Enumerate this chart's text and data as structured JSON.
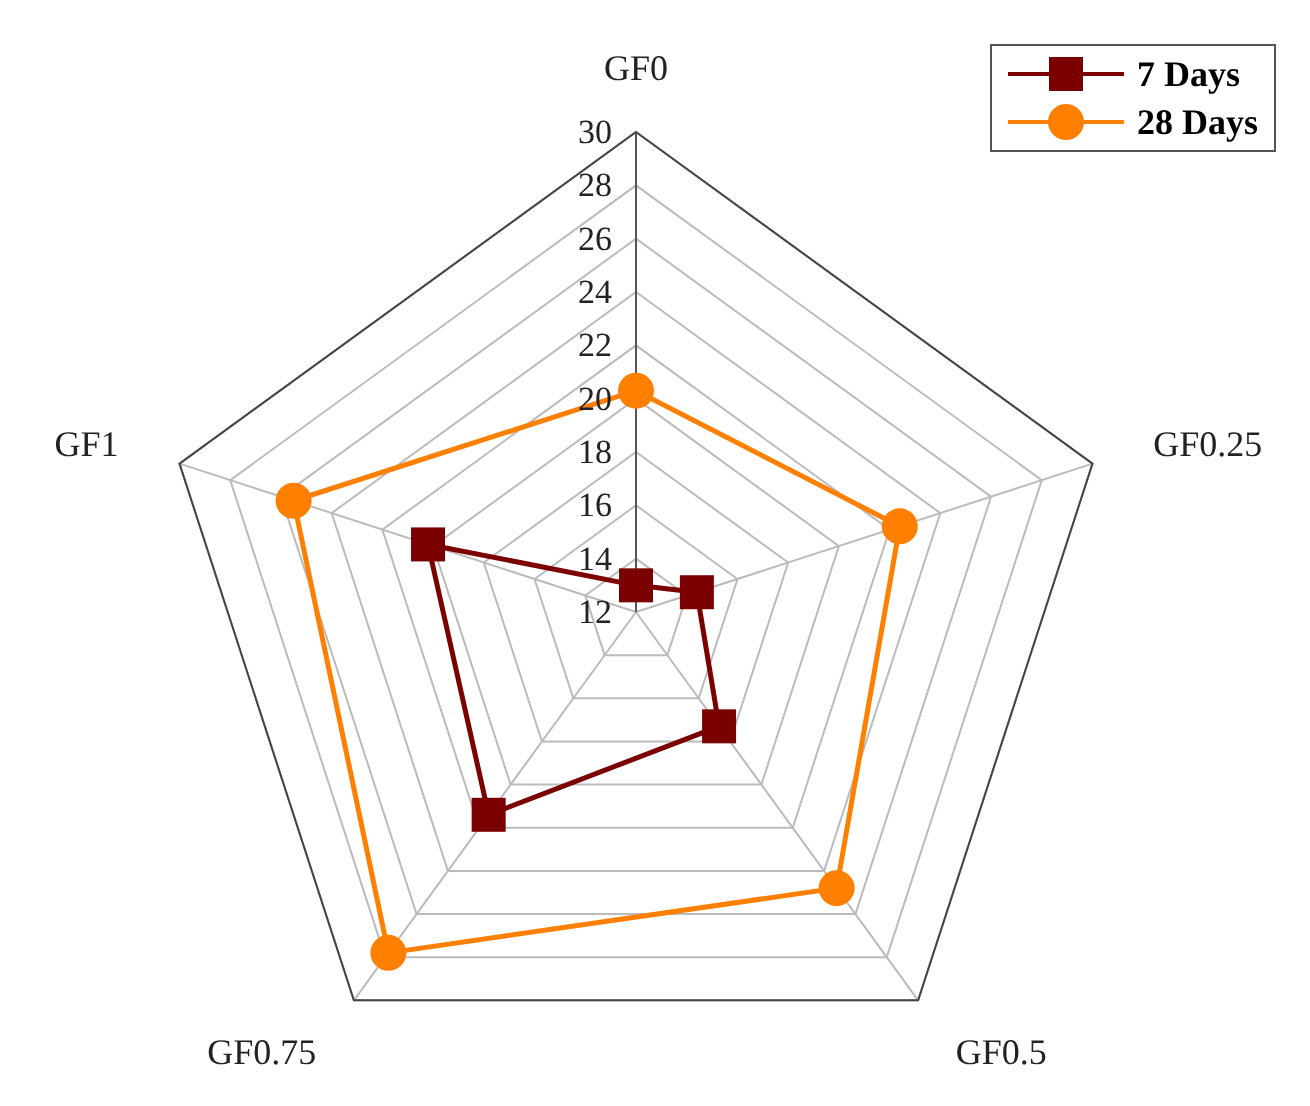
{
  "chart_data": {
    "type": "radar",
    "categories": [
      "GF0",
      "GF0.25",
      "GF0.5",
      "GF0.75",
      "GF1"
    ],
    "series": [
      {
        "name": "7 Days",
        "color": "#7b0000",
        "marker": "square",
        "values": [
          13.0,
          14.4,
          17.3,
          21.4,
          20.2
        ]
      },
      {
        "name": "28 Days",
        "color": "#ff8000",
        "marker": "circle",
        "values": [
          20.3,
          22.4,
          24.8,
          27.8,
          25.5
        ]
      }
    ],
    "ylim": [
      12,
      30
    ],
    "yticks": [
      12,
      14,
      16,
      18,
      20,
      22,
      24,
      26,
      28,
      30
    ],
    "grid": true,
    "legend": "top right"
  }
}
